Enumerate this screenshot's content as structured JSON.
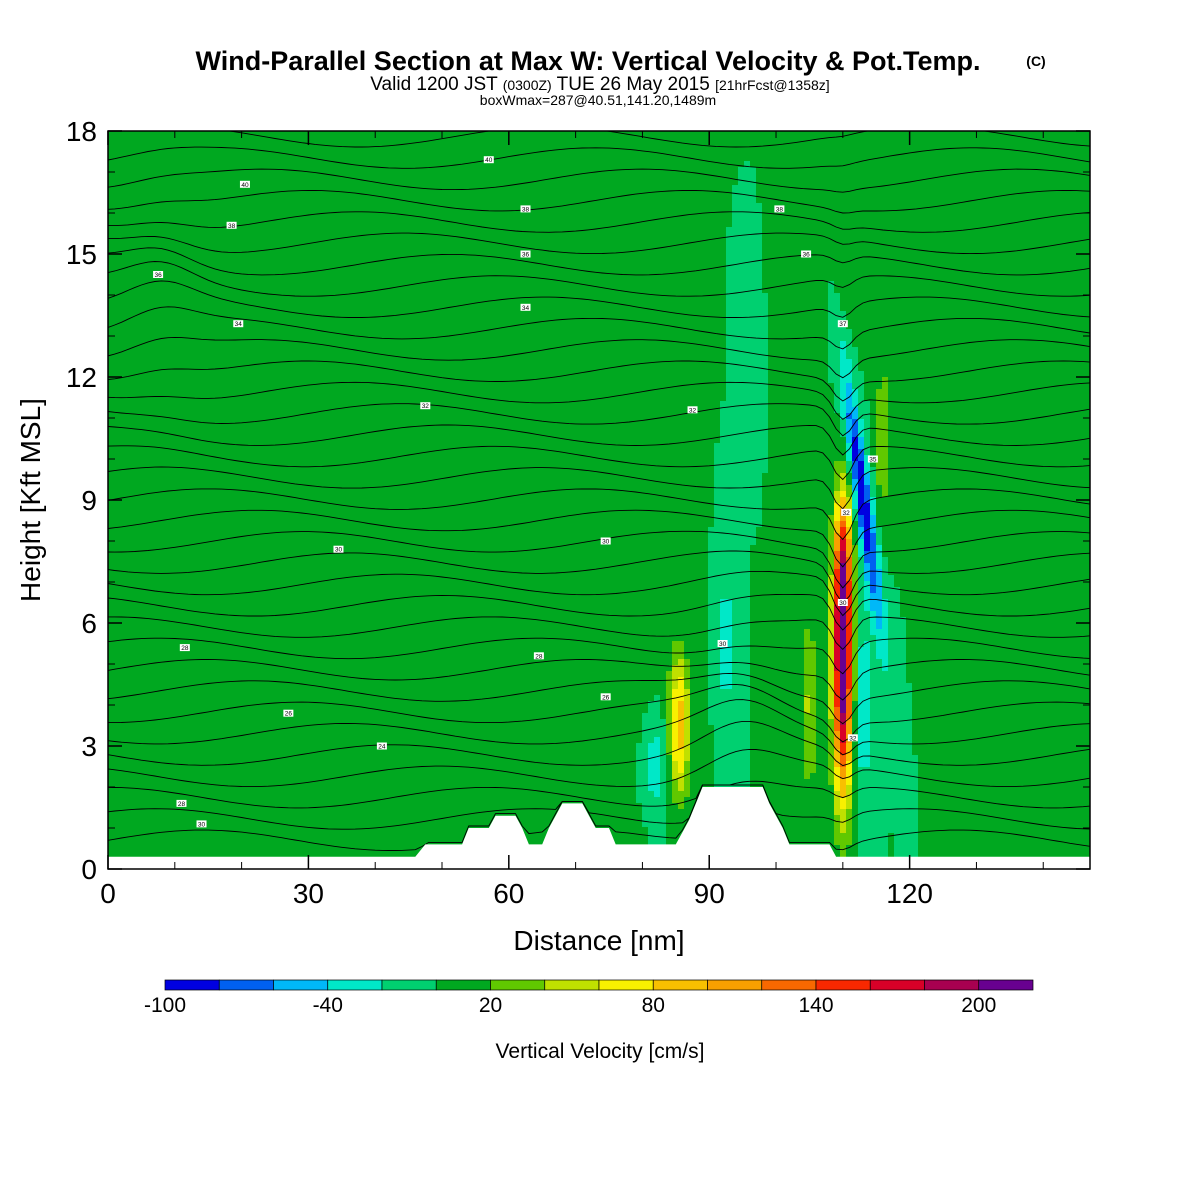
{
  "chart_data": {
    "type": "heatmap",
    "title": "Wind-Parallel Section at Max W: Vertical Velocity & Pot.Temp.",
    "title_mark": "(C)",
    "subtitle_main": "Valid 1200 JST",
    "subtitle_utc": "(0300Z)",
    "subtitle_date": "TUE 26 May 2015",
    "subtitle_fcst": "[21hrFcst@1358z]",
    "subtitle2": "boxWmax=287@40.51,141.20,1489m",
    "xlabel": "Distance [nm]",
    "ylabel": "Height [Kft MSL]",
    "xlim": [
      0,
      147
    ],
    "ylim": [
      0,
      18
    ],
    "x_ticks": [
      "0",
      "30",
      "60",
      "90",
      "120"
    ],
    "x_tick_values": [
      0,
      30,
      60,
      90,
      120
    ],
    "y_ticks": [
      "0",
      "3",
      "6",
      "9",
      "12",
      "15",
      "18"
    ],
    "y_tick_values": [
      0,
      3,
      6,
      9,
      12,
      15,
      18
    ],
    "colorbar": {
      "label": "Vertical Velocity [cm/s]",
      "bounds": [
        -100,
        220
      ],
      "tick_labels": [
        "-100",
        "-40",
        "20",
        "80",
        "140",
        "200"
      ],
      "tick_values": [
        -100,
        -40,
        20,
        80,
        140,
        200
      ],
      "colors": [
        "#0000e0",
        "#0060f0",
        "#00b8f8",
        "#00e8c8",
        "#00d070",
        "#00a820",
        "#60c800",
        "#c0e000",
        "#f8f000",
        "#f8c000",
        "#f8a000",
        "#f86800",
        "#f82800",
        "#d80028",
        "#a80050",
        "#680090"
      ]
    },
    "background_velocity": 0,
    "terrain_kft": [
      [
        0,
        0.3
      ],
      [
        46,
        0.3
      ],
      [
        47.5,
        0.6
      ],
      [
        53,
        0.6
      ],
      [
        54,
        1.0
      ],
      [
        57,
        1.0
      ],
      [
        58,
        1.3
      ],
      [
        61,
        1.3
      ],
      [
        62,
        1.0
      ],
      [
        63,
        0.6
      ],
      [
        65,
        0.6
      ],
      [
        66,
        1.0
      ],
      [
        67,
        1.3
      ],
      [
        68,
        1.6
      ],
      [
        71,
        1.6
      ],
      [
        72,
        1.3
      ],
      [
        73,
        1.0
      ],
      [
        75,
        1.0
      ],
      [
        76,
        0.6
      ],
      [
        85,
        0.6
      ],
      [
        86,
        0.9
      ],
      [
        87,
        1.2
      ],
      [
        88,
        1.6
      ],
      [
        89,
        2.0
      ],
      [
        98,
        2.0
      ],
      [
        99,
        1.6
      ],
      [
        100,
        1.3
      ],
      [
        101,
        1.0
      ],
      [
        102,
        0.6
      ],
      [
        108,
        0.6
      ],
      [
        109,
        0.3
      ],
      [
        147,
        0.3
      ]
    ],
    "velocity_features": [
      {
        "x": 110,
        "y": 5.0,
        "sx": 1.0,
        "sy": 2.2,
        "w": 230
      },
      {
        "x": 110,
        "y": 7.5,
        "sx": 0.9,
        "sy": 1.2,
        "w": 80
      },
      {
        "x": 85.5,
        "y": 3.5,
        "sx": 1.1,
        "sy": 1.2,
        "w": 95
      },
      {
        "x": 105,
        "y": 4.0,
        "sx": 0.8,
        "sy": 1.5,
        "w": 45
      },
      {
        "x": 116,
        "y": 10.5,
        "sx": 0.8,
        "sy": 1.5,
        "w": 35
      },
      {
        "x": 82,
        "y": 2.5,
        "sx": 1.4,
        "sy": 0.8,
        "w": -35
      },
      {
        "x": 92.5,
        "y": 5.5,
        "sx": 0.6,
        "sy": 1.2,
        "w": -40
      },
      {
        "x": 113,
        "y": 4.0,
        "sx": 1.0,
        "sy": 1.5,
        "w": -40
      },
      {
        "x": 95,
        "y": 12.5,
        "sx": 0.6,
        "sy": 0.8,
        "w": -20
      },
      {
        "x": 113,
        "y": 9.0,
        "sx": 0.9,
        "sy": 2.4,
        "w": -100,
        "tilt": -0.85
      },
      {
        "x": 5,
        "y": 7,
        "sx": 7,
        "sy": 5,
        "w": 15
      },
      {
        "x": 38,
        "y": 5,
        "sx": 5,
        "sy": 5,
        "w": 12
      },
      {
        "x": 64,
        "y": 8,
        "sx": 4,
        "sy": 7,
        "w": 14
      },
      {
        "x": 78,
        "y": 10,
        "sx": 3,
        "sy": 6,
        "w": 12
      },
      {
        "x": 137,
        "y": 6,
        "sx": 5,
        "sy": 6,
        "w": 14
      },
      {
        "x": 110,
        "y": 16,
        "sx": 2,
        "sy": 2,
        "w": 18
      },
      {
        "x": 15,
        "y": 2,
        "sx": 8,
        "sy": 1.5,
        "w": 15
      }
    ],
    "theta_labels": [
      {
        "x": 57,
        "y": 17.3,
        "text": "40"
      },
      {
        "x": 20.5,
        "y": 16.7,
        "text": "40"
      },
      {
        "x": 18.5,
        "y": 15.7,
        "text": "38"
      },
      {
        "x": 62.5,
        "y": 16.1,
        "text": "38"
      },
      {
        "x": 100.5,
        "y": 16.1,
        "text": "38"
      },
      {
        "x": 7.5,
        "y": 14.5,
        "text": "36"
      },
      {
        "x": 62.5,
        "y": 15.0,
        "text": "36"
      },
      {
        "x": 104.5,
        "y": 15.0,
        "text": "36"
      },
      {
        "x": 19.5,
        "y": 13.3,
        "text": "34"
      },
      {
        "x": 62.5,
        "y": 13.7,
        "text": "34"
      },
      {
        "x": 110,
        "y": 13.3,
        "text": "37"
      },
      {
        "x": 47.5,
        "y": 11.3,
        "text": "32"
      },
      {
        "x": 87.5,
        "y": 11.2,
        "text": "32"
      },
      {
        "x": 114.5,
        "y": 10.0,
        "text": "35"
      },
      {
        "x": 110.5,
        "y": 8.7,
        "text": "32"
      },
      {
        "x": 34.5,
        "y": 7.8,
        "text": "30"
      },
      {
        "x": 74.5,
        "y": 8.0,
        "text": "30"
      },
      {
        "x": 11.5,
        "y": 5.4,
        "text": "28"
      },
      {
        "x": 64.5,
        "y": 5.2,
        "text": "28"
      },
      {
        "x": 92,
        "y": 5.5,
        "text": "30"
      },
      {
        "x": 110,
        "y": 6.5,
        "text": "30"
      },
      {
        "x": 27,
        "y": 3.8,
        "text": "26"
      },
      {
        "x": 74.5,
        "y": 4.2,
        "text": "26"
      },
      {
        "x": 41,
        "y": 3.0,
        "text": "24"
      },
      {
        "x": 111.5,
        "y": 3.2,
        "text": "32"
      },
      {
        "x": 11,
        "y": 1.6,
        "text": "28"
      },
      {
        "x": 14,
        "y": 1.1,
        "text": "30"
      }
    ]
  }
}
